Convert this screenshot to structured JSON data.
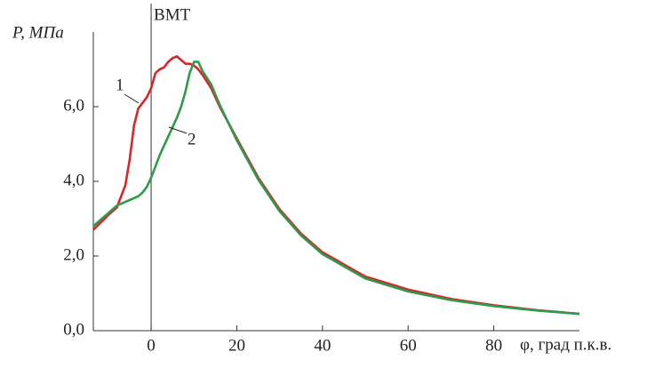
{
  "chart_data": {
    "type": "line",
    "y_label": "P, МПа",
    "x_label": "φ, град п.к.в.",
    "vline": {
      "x": 0,
      "label": "ВМТ"
    },
    "annotations": [
      "1",
      "2"
    ],
    "x": [
      -13.5,
      -10,
      -8,
      -6,
      -5,
      -4,
      -3,
      -2,
      -1,
      0,
      1,
      2,
      3,
      4,
      5,
      6,
      7,
      8,
      9,
      10,
      11,
      12,
      14,
      16,
      20,
      25,
      30,
      35,
      40,
      50,
      60,
      70,
      80,
      90,
      100
    ],
    "series": [
      {
        "name": "1",
        "color": "#d9262b",
        "values": [
          2.7,
          3.1,
          3.3,
          3.9,
          4.6,
          5.5,
          5.95,
          6.1,
          6.25,
          6.5,
          6.9,
          7.0,
          7.05,
          7.2,
          7.3,
          7.35,
          7.25,
          7.15,
          7.15,
          7.1,
          7.0,
          6.85,
          6.5,
          6.0,
          5.15,
          4.1,
          3.25,
          2.6,
          2.1,
          1.45,
          1.1,
          0.85,
          0.68,
          0.55,
          0.45
        ]
      },
      {
        "name": "2",
        "color": "#2e9a4a",
        "values": [
          2.8,
          3.15,
          3.35,
          3.45,
          3.5,
          3.55,
          3.6,
          3.7,
          3.85,
          4.1,
          4.4,
          4.7,
          4.95,
          5.2,
          5.45,
          5.7,
          6.0,
          6.4,
          6.9,
          7.2,
          7.2,
          6.95,
          6.6,
          6.05,
          5.1,
          4.05,
          3.2,
          2.55,
          2.05,
          1.4,
          1.05,
          0.82,
          0.66,
          0.54,
          0.45
        ]
      }
    ],
    "xlim": [
      -13.5,
      100
    ],
    "ylim": [
      0,
      8
    ],
    "xticks": [
      0,
      20,
      40,
      60,
      80
    ],
    "yticks": [
      {
        "value": 0,
        "label": "0,0"
      },
      {
        "value": 2,
        "label": "2,0"
      },
      {
        "value": 4,
        "label": "4,0"
      },
      {
        "value": 6,
        "label": "6,0"
      }
    ],
    "grid": false
  }
}
